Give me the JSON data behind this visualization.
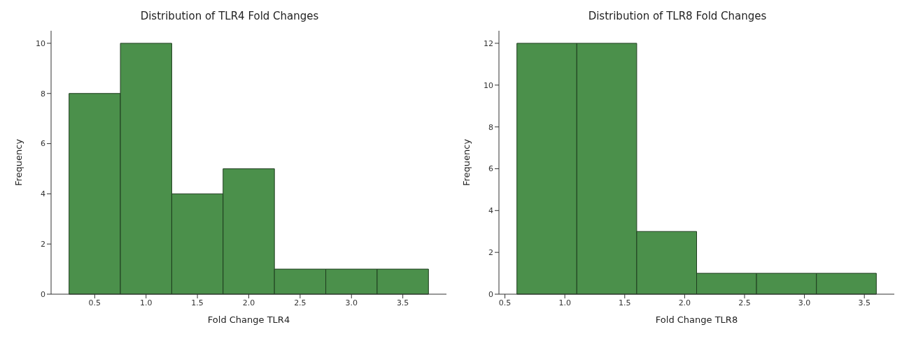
{
  "chart_data": [
    {
      "type": "histogram",
      "title": "Distribution of TLR4 Fold Changes",
      "xlabel": "Fold Change TLR4",
      "ylabel": "Frequency",
      "bins": [
        0.25,
        0.75,
        1.25,
        1.75,
        2.25,
        2.75,
        3.25,
        3.75
      ],
      "values": [
        8,
        10,
        4,
        5,
        1,
        1,
        1
      ],
      "color": "#4b904b",
      "xlim": [
        0.075,
        3.925
      ],
      "xticks": [
        0.5,
        {
          "value": 1,
          "label": "1.0"
        },
        1.5,
        {
          "value": 2,
          "label": "2.0"
        },
        2.5,
        {
          "value": 3,
          "label": "3.0"
        },
        3.5
      ],
      "ylim": [
        0,
        10.5
      ],
      "yticks": [
        0,
        2,
        4,
        6,
        8,
        10
      ]
    },
    {
      "type": "histogram",
      "title": "Distribution of TLR8 Fold Changes",
      "xlabel": "Fold Change TLR8",
      "ylabel": "Frequency",
      "bins": [
        0.6,
        1.1,
        1.6,
        2.1,
        2.6,
        3.1,
        3.6
      ],
      "values": [
        12,
        12,
        3,
        1,
        1,
        1
      ],
      "color": "#4b904b",
      "xlim": [
        0.45,
        3.75
      ],
      "xticks": [
        0.5,
        {
          "value": 1,
          "label": "1.0"
        },
        1.5,
        {
          "value": 2,
          "label": "2.0"
        },
        2.5,
        {
          "value": 3,
          "label": "3.0"
        },
        3.5
      ],
      "ylim": [
        0,
        12.6
      ],
      "yticks": [
        0,
        2,
        4,
        6,
        8,
        10,
        12
      ]
    }
  ]
}
